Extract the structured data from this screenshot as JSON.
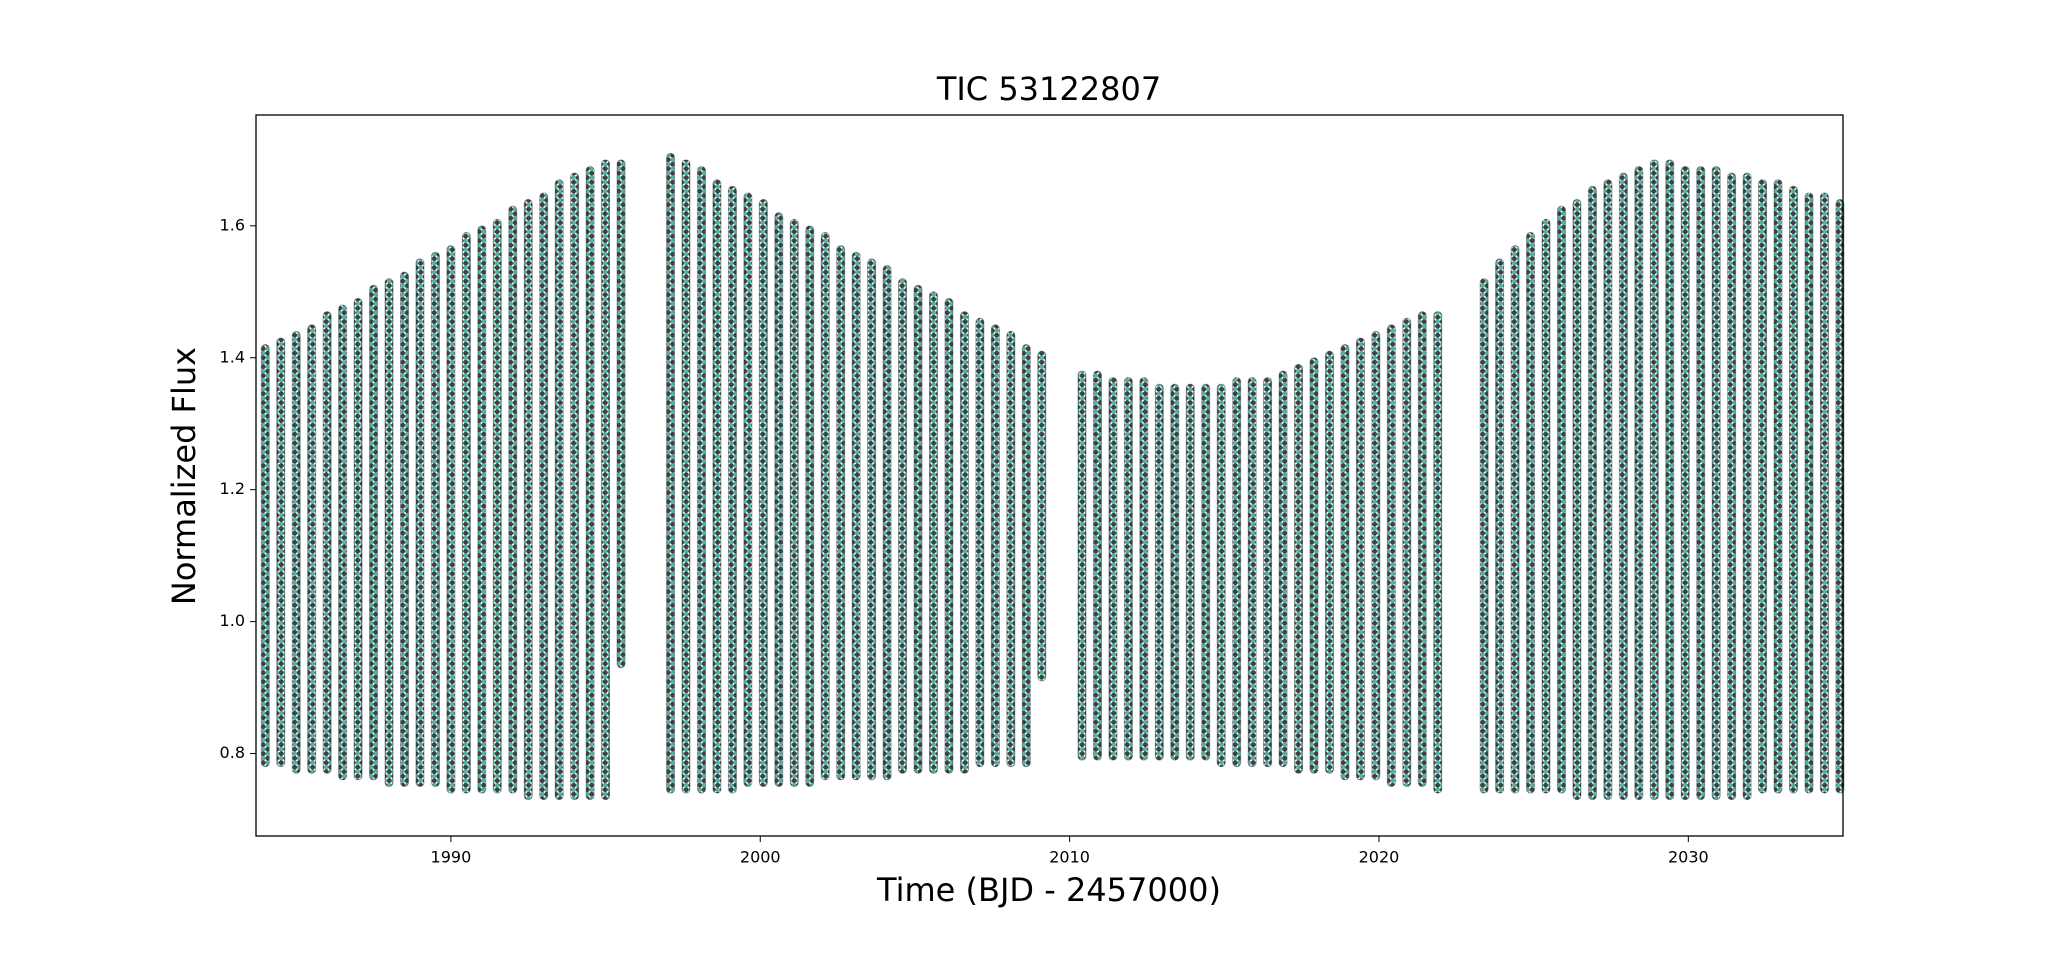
{
  "chart_data": {
    "type": "range",
    "title": "TIC 53122807",
    "xlabel": "Time (BJD - 2457000)",
    "ylabel": "Normalized Flux",
    "colors": [
      "#2a9d8f",
      "#111111"
    ],
    "xlim": [
      1983.7,
      2035.0
    ],
    "ylim": [
      0.675,
      1.768
    ],
    "xticks": [
      1990,
      2000,
      2010,
      2020,
      2030
    ],
    "yticks": [
      0.8,
      {
        "value": 1,
        "label": "1.0"
      },
      1.2,
      1.4,
      1.6
    ],
    "x": [
      1984.0,
      1984.5,
      1985.0,
      1985.5,
      1986.0,
      1986.5,
      1987.0,
      1987.5,
      1988.0,
      1988.5,
      1989.0,
      1989.5,
      1990.0,
      1990.5,
      1991.0,
      1991.5,
      1992.0,
      1992.5,
      1993.0,
      1993.5,
      1994.0,
      1994.5,
      1995.0,
      1995.5,
      1997.1,
      1997.6,
      1998.1,
      1998.6,
      1999.1,
      1999.6,
      2000.1,
      2000.6,
      2001.1,
      2001.6,
      2002.1,
      2002.6,
      2003.1,
      2003.6,
      2004.1,
      2004.6,
      2005.1,
      2005.6,
      2006.1,
      2006.6,
      2007.1,
      2007.6,
      2008.1,
      2008.6,
      2009.1,
      2010.4,
      2010.9,
      2011.4,
      2011.9,
      2012.4,
      2012.9,
      2013.4,
      2013.9,
      2014.4,
      2014.9,
      2015.4,
      2015.9,
      2016.4,
      2016.9,
      2017.4,
      2017.9,
      2018.4,
      2018.9,
      2019.4,
      2019.9,
      2020.4,
      2020.9,
      2021.4,
      2021.9,
      2023.4,
      2023.9,
      2024.4,
      2024.9,
      2025.4,
      2025.9,
      2026.4,
      2026.9,
      2027.4,
      2027.9,
      2028.4,
      2028.9,
      2029.4,
      2029.9,
      2030.4,
      2030.9,
      2031.4,
      2031.9,
      2032.4,
      2032.9,
      2033.4,
      2033.9,
      2034.4,
      2034.9
    ],
    "low": [
      0.78,
      0.78,
      0.77,
      0.77,
      0.77,
      0.76,
      0.76,
      0.76,
      0.75,
      0.75,
      0.75,
      0.75,
      0.74,
      0.74,
      0.74,
      0.74,
      0.74,
      0.73,
      0.73,
      0.73,
      0.73,
      0.73,
      0.73,
      0.93,
      0.74,
      0.74,
      0.74,
      0.74,
      0.74,
      0.75,
      0.75,
      0.75,
      0.75,
      0.75,
      0.76,
      0.76,
      0.76,
      0.76,
      0.76,
      0.77,
      0.77,
      0.77,
      0.77,
      0.77,
      0.78,
      0.78,
      0.78,
      0.78,
      0.91,
      0.79,
      0.79,
      0.79,
      0.79,
      0.79,
      0.79,
      0.79,
      0.79,
      0.79,
      0.78,
      0.78,
      0.78,
      0.78,
      0.78,
      0.77,
      0.77,
      0.77,
      0.76,
      0.76,
      0.76,
      0.75,
      0.75,
      0.75,
      0.74,
      0.74,
      0.74,
      0.74,
      0.74,
      0.74,
      0.74,
      0.73,
      0.73,
      0.73,
      0.73,
      0.73,
      0.73,
      0.73,
      0.73,
      0.73,
      0.73,
      0.73,
      0.73,
      0.74,
      0.74,
      0.74,
      0.74,
      0.74,
      0.74
    ],
    "high": [
      1.42,
      1.43,
      1.44,
      1.45,
      1.47,
      1.48,
      1.49,
      1.51,
      1.52,
      1.53,
      1.55,
      1.56,
      1.57,
      1.59,
      1.6,
      1.61,
      1.63,
      1.64,
      1.65,
      1.67,
      1.68,
      1.69,
      1.7,
      1.7,
      1.71,
      1.7,
      1.69,
      1.67,
      1.66,
      1.65,
      1.64,
      1.62,
      1.61,
      1.6,
      1.59,
      1.57,
      1.56,
      1.55,
      1.54,
      1.52,
      1.51,
      1.5,
      1.49,
      1.47,
      1.46,
      1.45,
      1.44,
      1.42,
      1.41,
      1.38,
      1.38,
      1.37,
      1.37,
      1.37,
      1.36,
      1.36,
      1.36,
      1.36,
      1.36,
      1.37,
      1.37,
      1.37,
      1.38,
      1.39,
      1.4,
      1.41,
      1.42,
      1.43,
      1.44,
      1.45,
      1.46,
      1.47,
      1.47,
      1.52,
      1.55,
      1.57,
      1.59,
      1.61,
      1.63,
      1.64,
      1.66,
      1.67,
      1.68,
      1.69,
      1.7,
      1.7,
      1.69,
      1.69,
      1.69,
      1.68,
      1.68,
      1.67,
      1.67,
      1.66,
      1.65,
      1.65,
      1.64
    ]
  }
}
